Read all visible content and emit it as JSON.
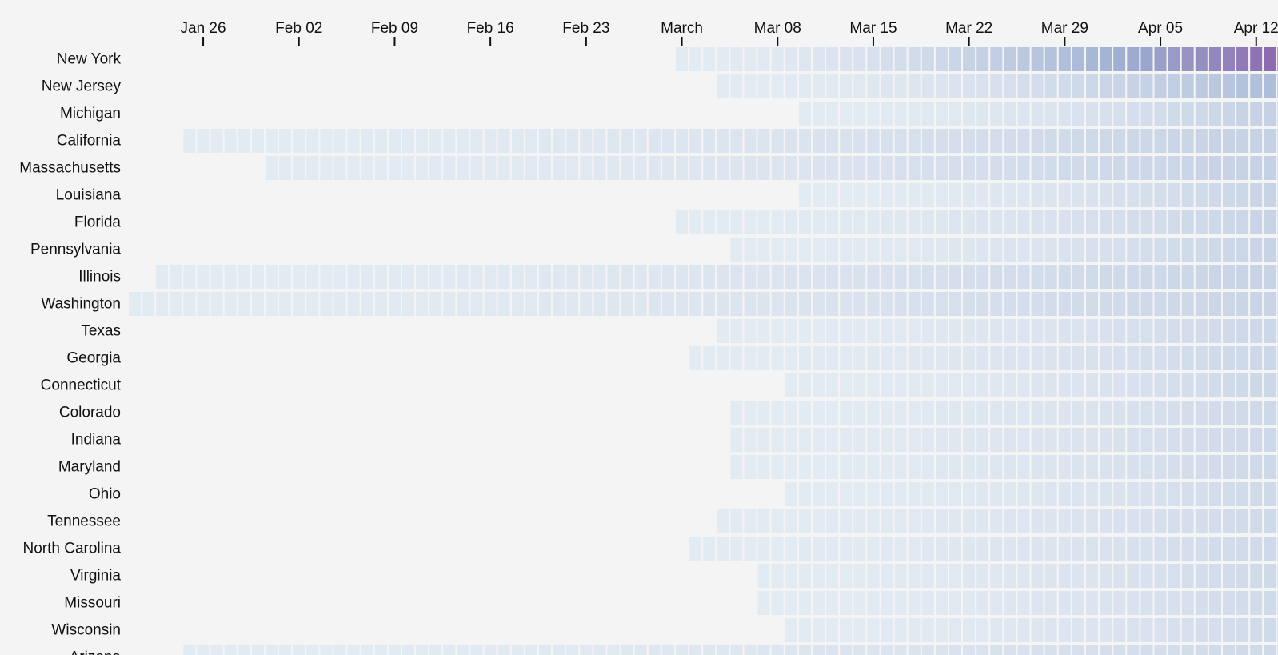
{
  "chart_data": {
    "type": "heatmap",
    "title": "",
    "xlabel": "",
    "ylabel": "",
    "start_date": "2020-01-21",
    "end_date": "2020-04-14",
    "x_ticks": [
      {
        "date": "2020-01-26",
        "label": "Jan 26"
      },
      {
        "date": "2020-02-02",
        "label": "Feb 02"
      },
      {
        "date": "2020-02-09",
        "label": "Feb 09"
      },
      {
        "date": "2020-02-16",
        "label": "Feb 16"
      },
      {
        "date": "2020-02-23",
        "label": "Feb 23"
      },
      {
        "date": "2020-03-01",
        "label": "March"
      },
      {
        "date": "2020-03-08",
        "label": "Mar 08"
      },
      {
        "date": "2020-03-15",
        "label": "Mar 15"
      },
      {
        "date": "2020-03-22",
        "label": "Mar 22"
      },
      {
        "date": "2020-03-29",
        "label": "Mar 29"
      },
      {
        "date": "2020-04-05",
        "label": "Apr 05"
      },
      {
        "date": "2020-04-12",
        "label": "Apr 12"
      }
    ],
    "color_scale": {
      "low": "#e2eaf2",
      "mid": "#9eb0d2",
      "high": "#8a64ad",
      "max_value": 1.0
    },
    "rows": [
      {
        "name": "New York",
        "first_date": "2020-03-01",
        "final_intensity": 1.0
      },
      {
        "name": "New Jersey",
        "first_date": "2020-03-04",
        "final_intensity": 0.4
      },
      {
        "name": "Michigan",
        "first_date": "2020-03-10",
        "final_intensity": 0.23
      },
      {
        "name": "California",
        "first_date": "2020-01-25",
        "final_intensity": 0.22
      },
      {
        "name": "Massachusetts",
        "first_date": "2020-01-31",
        "final_intensity": 0.22
      },
      {
        "name": "Louisiana",
        "first_date": "2020-03-10",
        "final_intensity": 0.2
      },
      {
        "name": "Florida",
        "first_date": "2020-03-01",
        "final_intensity": 0.2
      },
      {
        "name": "Pennsylvania",
        "first_date": "2020-03-05",
        "final_intensity": 0.2
      },
      {
        "name": "Illinois",
        "first_date": "2020-01-23",
        "final_intensity": 0.2
      },
      {
        "name": "Washington",
        "first_date": "2020-01-21",
        "final_intensity": 0.19
      },
      {
        "name": "Texas",
        "first_date": "2020-03-04",
        "final_intensity": 0.17
      },
      {
        "name": "Georgia",
        "first_date": "2020-03-02",
        "final_intensity": 0.17
      },
      {
        "name": "Connecticut",
        "first_date": "2020-03-09",
        "final_intensity": 0.17
      },
      {
        "name": "Colorado",
        "first_date": "2020-03-05",
        "final_intensity": 0.16
      },
      {
        "name": "Indiana",
        "first_date": "2020-03-05",
        "final_intensity": 0.16
      },
      {
        "name": "Maryland",
        "first_date": "2020-03-05",
        "final_intensity": 0.16
      },
      {
        "name": "Ohio",
        "first_date": "2020-03-09",
        "final_intensity": 0.15
      },
      {
        "name": "Tennessee",
        "first_date": "2020-03-04",
        "final_intensity": 0.15
      },
      {
        "name": "North Carolina",
        "first_date": "2020-03-02",
        "final_intensity": 0.15
      },
      {
        "name": "Virginia",
        "first_date": "2020-03-07",
        "final_intensity": 0.15
      },
      {
        "name": "Missouri",
        "first_date": "2020-03-07",
        "final_intensity": 0.14
      },
      {
        "name": "Wisconsin",
        "first_date": "2020-03-09",
        "final_intensity": 0.14
      },
      {
        "name": "Arizona",
        "first_date": "2020-01-25",
        "final_intensity": 0.14
      }
    ]
  }
}
